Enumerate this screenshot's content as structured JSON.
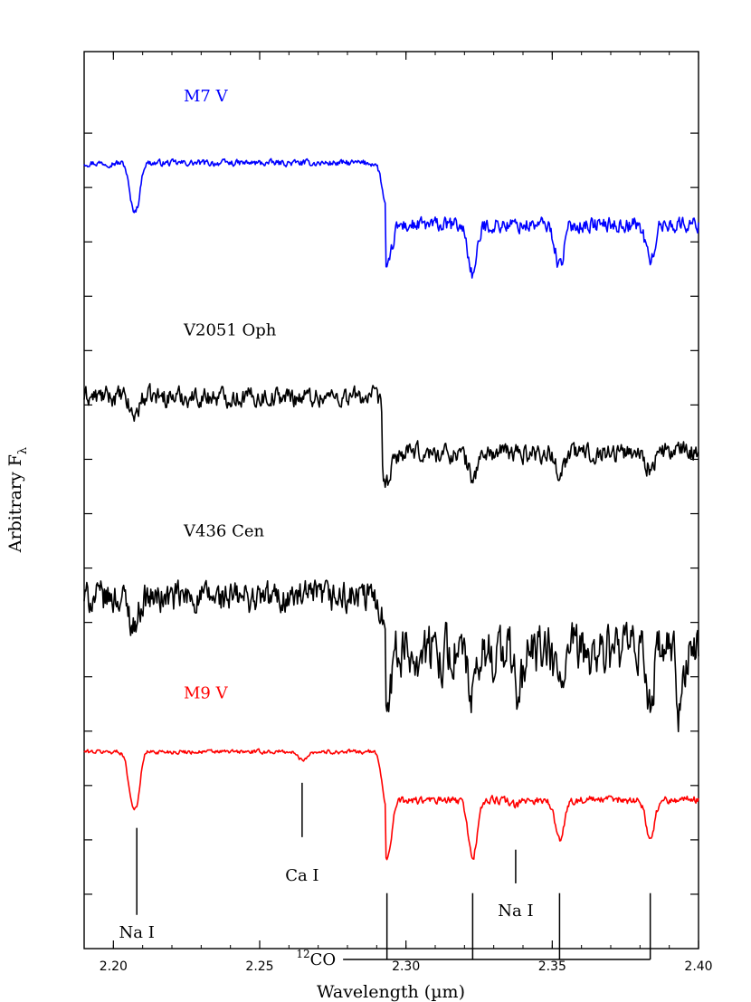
{
  "chart_data": {
    "type": "line",
    "xlabel": "Wavelength (µm)",
    "ylabel_base": "Arbitrary F",
    "ylabel_sub": "λ",
    "xlim": [
      2.19,
      2.4
    ],
    "xticks": [
      2.2,
      2.25,
      2.3,
      2.35,
      2.4
    ],
    "xtick_labels": [
      "2.20",
      "2.25",
      "2.30",
      "2.35",
      "2.40"
    ],
    "ylim": [
      0,
      16.5
    ],
    "yticks": [
      1,
      2,
      3,
      4,
      5,
      6,
      7,
      8,
      9,
      10,
      11,
      12,
      13,
      14,
      15
    ],
    "grid": false,
    "series": [
      {
        "name": "M7 V",
        "color": "#0000ff",
        "base": 14.45,
        "noise": 0.09,
        "noise_after": 0.22,
        "step_at": 2.293,
        "step_drop": 1.15,
        "slope_after": -0.02,
        "features": [
          [
            2.2065,
            0.75,
            0.0012
          ],
          [
            2.2085,
            0.55,
            0.001
          ],
          [
            2.2935,
            0.85,
            0.0015
          ],
          [
            2.3228,
            0.9,
            0.0015
          ],
          [
            2.3525,
            0.75,
            0.0015
          ],
          [
            2.3835,
            0.65,
            0.0015
          ]
        ]
      },
      {
        "name": "V2051 Oph",
        "color": "#000000",
        "base": 10.15,
        "noise": 0.28,
        "noise_after": 0.28,
        "step_at": 2.292,
        "step_drop": 1.05,
        "slope_after": -0.04,
        "features": [
          [
            2.207,
            0.35,
            0.0015
          ],
          [
            2.2935,
            0.55,
            0.0015
          ],
          [
            2.3228,
            0.45,
            0.0015
          ],
          [
            2.3525,
            0.35,
            0.0015
          ],
          [
            2.3835,
            0.3,
            0.0015
          ]
        ]
      },
      {
        "name": "V436 Cen",
        "color": "#000000",
        "base": 6.45,
        "noise": 0.45,
        "noise_after": 0.75,
        "step_at": 2.293,
        "step_drop": 1.0,
        "slope_after": 0.0,
        "features": [
          [
            2.207,
            0.5,
            0.0015
          ],
          [
            2.2935,
            0.6,
            0.0015
          ],
          [
            2.3228,
            0.9,
            0.0015
          ],
          [
            2.3385,
            0.8,
            0.0012
          ],
          [
            2.3525,
            0.6,
            0.0015
          ],
          [
            2.3835,
            0.8,
            0.0012
          ],
          [
            2.3935,
            1.2,
            0.001
          ]
        ]
      },
      {
        "name": "M9 V",
        "color": "#ff0000",
        "base": 3.62,
        "noise": 0.06,
        "noise_after": 0.11,
        "step_at": 2.293,
        "step_drop": 0.9,
        "slope_after": -0.02,
        "features": [
          [
            2.2065,
            0.9,
            0.0014
          ],
          [
            2.2085,
            0.55,
            0.001
          ],
          [
            2.2645,
            0.15,
            0.0015
          ],
          [
            2.2935,
            1.05,
            0.0015
          ],
          [
            2.3228,
            1.05,
            0.0015
          ],
          [
            2.3375,
            0.1,
            0.0015
          ],
          [
            2.3525,
            0.75,
            0.0015
          ],
          [
            2.3835,
            0.7,
            0.0015
          ]
        ]
      }
    ],
    "annotations": {
      "nai_left": {
        "text": "Na I",
        "x": 2.208,
        "y_top": 2.22,
        "y_bottom": 0.62,
        "label_y": 0.2
      },
      "cai": {
        "text": "Ca I",
        "x": 2.2645,
        "y_top": 3.05,
        "y_bottom": 2.05,
        "label_y": 1.25
      },
      "nai_right": {
        "text": "Na I",
        "x": 2.3375,
        "y_top": 1.82,
        "y_bottom": 1.2,
        "label_y": 0.6
      },
      "co": {
        "text": "CO",
        "superscript": "12",
        "x_positions": [
          2.2935,
          2.3228,
          2.3525,
          2.3835
        ],
        "y_top": 1.02,
        "y_bar": -0.2,
        "bar_x_start": 2.2785,
        "bar_x_end": 2.3835
      }
    }
  }
}
